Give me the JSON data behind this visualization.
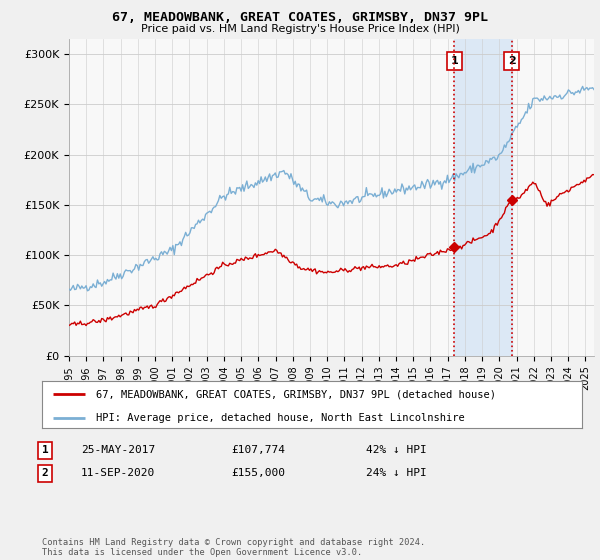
{
  "title": "67, MEADOWBANK, GREAT COATES, GRIMSBY, DN37 9PL",
  "subtitle": "Price paid vs. HM Land Registry's House Price Index (HPI)",
  "ylabel_ticks": [
    "£0",
    "£50K",
    "£100K",
    "£150K",
    "£200K",
    "£250K",
    "£300K"
  ],
  "ytick_values": [
    0,
    50000,
    100000,
    150000,
    200000,
    250000,
    300000
  ],
  "ylim": [
    0,
    315000
  ],
  "xlim_start": 1995.0,
  "xlim_end": 2025.5,
  "hpi_color": "#7bafd4",
  "price_color": "#cc0000",
  "marker1_date": 2017.39,
  "marker1_price": 107774,
  "marker1_label": "1",
  "marker2_date": 2020.72,
  "marker2_price": 155000,
  "marker2_label": "2",
  "vline1_x": 2017.39,
  "vline2_x": 2020.72,
  "span_color": "#dce8f5",
  "legend_line1": "67, MEADOWBANK, GREAT COATES, GRIMSBY, DN37 9PL (detached house)",
  "legend_line2": "HPI: Average price, detached house, North East Lincolnshire",
  "table_row1_num": "1",
  "table_row1_date": "25-MAY-2017",
  "table_row1_price": "£107,774",
  "table_row1_hpi": "42% ↓ HPI",
  "table_row2_num": "2",
  "table_row2_date": "11-SEP-2020",
  "table_row2_price": "£155,000",
  "table_row2_hpi": "24% ↓ HPI",
  "footer": "Contains HM Land Registry data © Crown copyright and database right 2024.\nThis data is licensed under the Open Government Licence v3.0.",
  "background_color": "#f0f0f0",
  "plot_bg_color": "#f8f8f8"
}
